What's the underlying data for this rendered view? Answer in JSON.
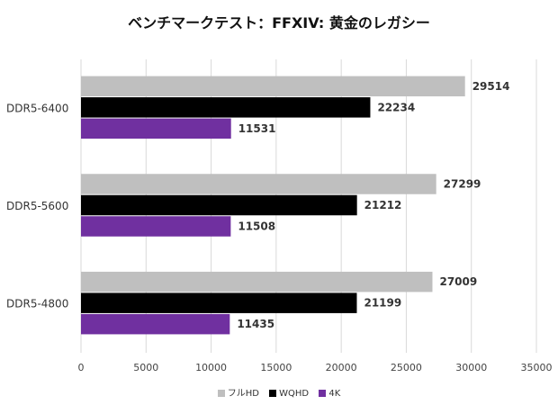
{
  "chart_data": {
    "type": "bar",
    "orientation": "horizontal",
    "title": "ベンチマークテスト：FFXIV: 黄金のレガシー",
    "categories": [
      "DDR5-6400",
      "DDR5-5600",
      "DDR5-4800"
    ],
    "series": [
      {
        "name": "フルHD",
        "color": "#bfbfbf",
        "values": [
          29514,
          27299,
          27009
        ]
      },
      {
        "name": "WQHD",
        "color": "#000000",
        "values": [
          22234,
          21212,
          21199
        ]
      },
      {
        "name": "4K",
        "color": "#7030a0",
        "values": [
          11531,
          11508,
          11435
        ]
      }
    ],
    "xlim": [
      0,
      35000
    ],
    "xticks": [
      0,
      5000,
      10000,
      15000,
      20000,
      25000,
      30000,
      35000
    ],
    "grid": true,
    "legend_position": "bottom"
  }
}
